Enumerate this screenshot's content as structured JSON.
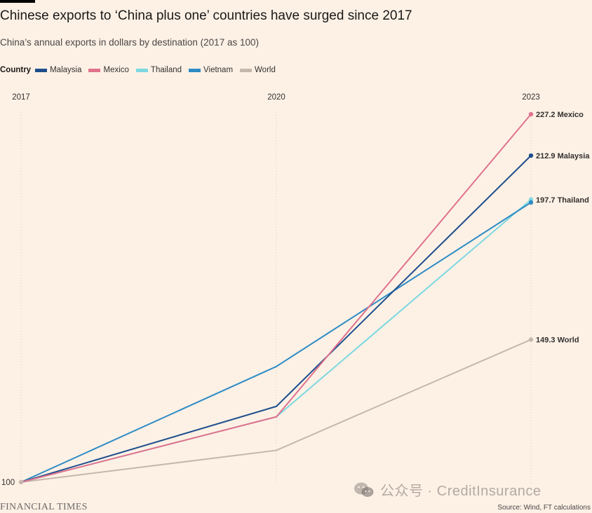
{
  "header": {
    "title": "Chinese exports to ‘China plus one’ countries have surged since 2017",
    "subtitle": "China’s annual exports in dollars by destination (2017 as 100)"
  },
  "legend": {
    "title": "Country"
  },
  "footer": {
    "logo_text": "FINANCIAL TIMES",
    "source": "Source: Wind, FT calculations"
  },
  "watermark": {
    "text": "公众号 · CreditInsurance"
  },
  "chart_data": {
    "type": "line",
    "x": [
      2017,
      2020,
      2023
    ],
    "tick_labels": [
      "2017",
      "2020",
      "2023"
    ],
    "y_tick_label": "100",
    "ylim": [
      100,
      227.2
    ],
    "grid": "vertical dotted lines at each year",
    "legend_position": "top-left",
    "series": [
      {
        "name": "Malaysia",
        "color": "#1E4E8C",
        "values": [
          100,
          126.2,
          212.9
        ],
        "end_label": "212.9 Malaysia"
      },
      {
        "name": "Mexico",
        "color": "#E0728D",
        "values": [
          100,
          122.6,
          227.2
        ],
        "end_label": "227.2 Mexico"
      },
      {
        "name": "Thailand",
        "color": "#7DD8E0",
        "values": [
          100,
          122.6,
          197.7
        ],
        "end_label": "197.7 Thailand"
      },
      {
        "name": "Vietnam",
        "color": "#2E8BC4",
        "values": [
          100,
          140.0,
          196.7
        ],
        "end_label": ""
      },
      {
        "name": "World",
        "color": "#C6B7AC",
        "values": [
          100,
          111.0,
          149.3
        ],
        "end_label": "149.3 World"
      }
    ]
  }
}
